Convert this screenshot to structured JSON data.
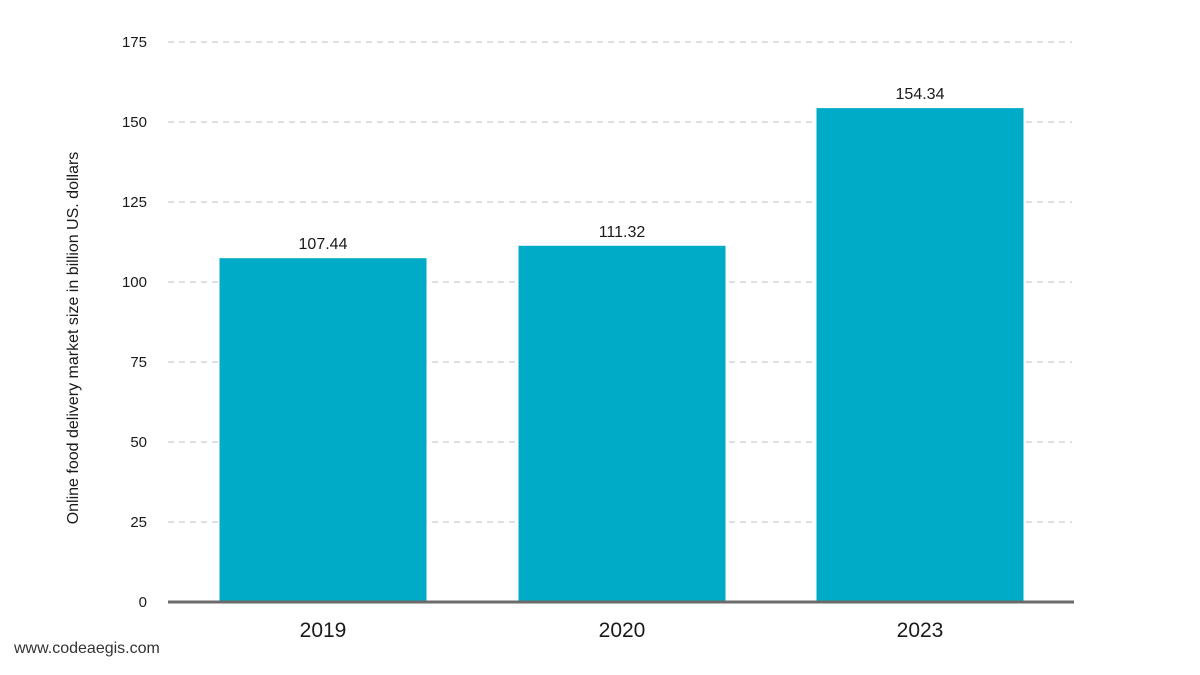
{
  "chart_data": {
    "type": "bar",
    "categories": [
      "2019",
      "2020",
      "2023"
    ],
    "values": [
      107.44,
      111.32,
      154.34
    ],
    "value_labels": [
      "107.44",
      "111.32",
      "154.34"
    ],
    "ylabel": "Online food delivery market  size in billion US. dollars",
    "xlabel": "",
    "ylim": [
      0,
      175
    ],
    "yticks": [
      0,
      25,
      50,
      75,
      100,
      125,
      150,
      175
    ],
    "grid": true,
    "bar_color": "#00abc7"
  },
  "footer": {
    "watermark": "www.codeaegis.com"
  }
}
